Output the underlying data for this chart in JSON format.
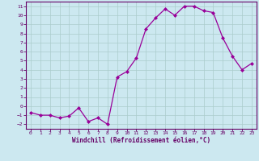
{
  "x": [
    0,
    1,
    2,
    3,
    4,
    5,
    6,
    7,
    8,
    9,
    10,
    11,
    12,
    13,
    14,
    15,
    16,
    17,
    18,
    19,
    20,
    21,
    22,
    23
  ],
  "y": [
    -0.7,
    -1.0,
    -1.0,
    -1.3,
    -1.1,
    -0.2,
    -1.7,
    -1.3,
    -2.0,
    3.2,
    3.8,
    5.3,
    8.5,
    9.7,
    10.7,
    10.0,
    11.0,
    11.0,
    10.5,
    10.3,
    7.5,
    5.5,
    4.0,
    4.7
  ],
  "line_color": "#990099",
  "marker": "D",
  "markersize": 2,
  "linewidth": 0.9,
  "xlabel": "Windchill (Refroidissement éolien,°C)",
  "xlim": [
    -0.5,
    23.5
  ],
  "ylim": [
    -2.5,
    11.5
  ],
  "yticks": [
    -2,
    -1,
    0,
    1,
    2,
    3,
    4,
    5,
    6,
    7,
    8,
    9,
    10,
    11
  ],
  "xticks": [
    0,
    1,
    2,
    3,
    4,
    5,
    6,
    7,
    8,
    9,
    10,
    11,
    12,
    13,
    14,
    15,
    16,
    17,
    18,
    19,
    20,
    21,
    22,
    23
  ],
  "bg_color": "#cce8f0",
  "grid_color": "#aacccc",
  "tick_color": "#660066",
  "label_color": "#660066",
  "spine_color": "#660066"
}
